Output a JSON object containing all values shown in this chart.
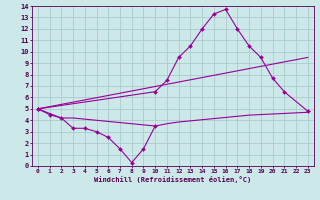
{
  "xlabel": "Windchill (Refroidissement éolien,°C)",
  "xlim": [
    -0.5,
    23.5
  ],
  "ylim": [
    0,
    14
  ],
  "xticks": [
    0,
    1,
    2,
    3,
    4,
    5,
    6,
    7,
    8,
    9,
    10,
    11,
    12,
    13,
    14,
    15,
    16,
    17,
    18,
    19,
    20,
    21,
    22,
    23
  ],
  "yticks": [
    0,
    1,
    2,
    3,
    4,
    5,
    6,
    7,
    8,
    9,
    10,
    11,
    12,
    13,
    14
  ],
  "background_color": "#cce8e8",
  "line_color": "#990099",
  "grid_color": "#aacccc",
  "line1_x": [
    0,
    1,
    2,
    3,
    4,
    5,
    6,
    7,
    8,
    9,
    10
  ],
  "line1_y": [
    5,
    4.5,
    4.2,
    3.3,
    3.3,
    3.0,
    2.5,
    1.5,
    0.3,
    1.5,
    3.5
  ],
  "line2_x": [
    0,
    2,
    3,
    10,
    11,
    12,
    13,
    14,
    15,
    16,
    17,
    18,
    19,
    20,
    21,
    22,
    23
  ],
  "line2_y": [
    5,
    4.2,
    4.2,
    3.5,
    3.7,
    3.85,
    3.95,
    4.05,
    4.15,
    4.25,
    4.35,
    4.45,
    4.5,
    4.55,
    4.6,
    4.65,
    4.7
  ],
  "line3_x": [
    0,
    10,
    11,
    12,
    13,
    14,
    15,
    16,
    17,
    18,
    19,
    20,
    21,
    23
  ],
  "line3_y": [
    5,
    6.5,
    7.5,
    9.5,
    10.5,
    12.0,
    13.3,
    13.7,
    12.0,
    10.5,
    9.5,
    7.7,
    6.5,
    4.8
  ],
  "line4_x": [
    0,
    23
  ],
  "line4_y": [
    5,
    9.5
  ]
}
